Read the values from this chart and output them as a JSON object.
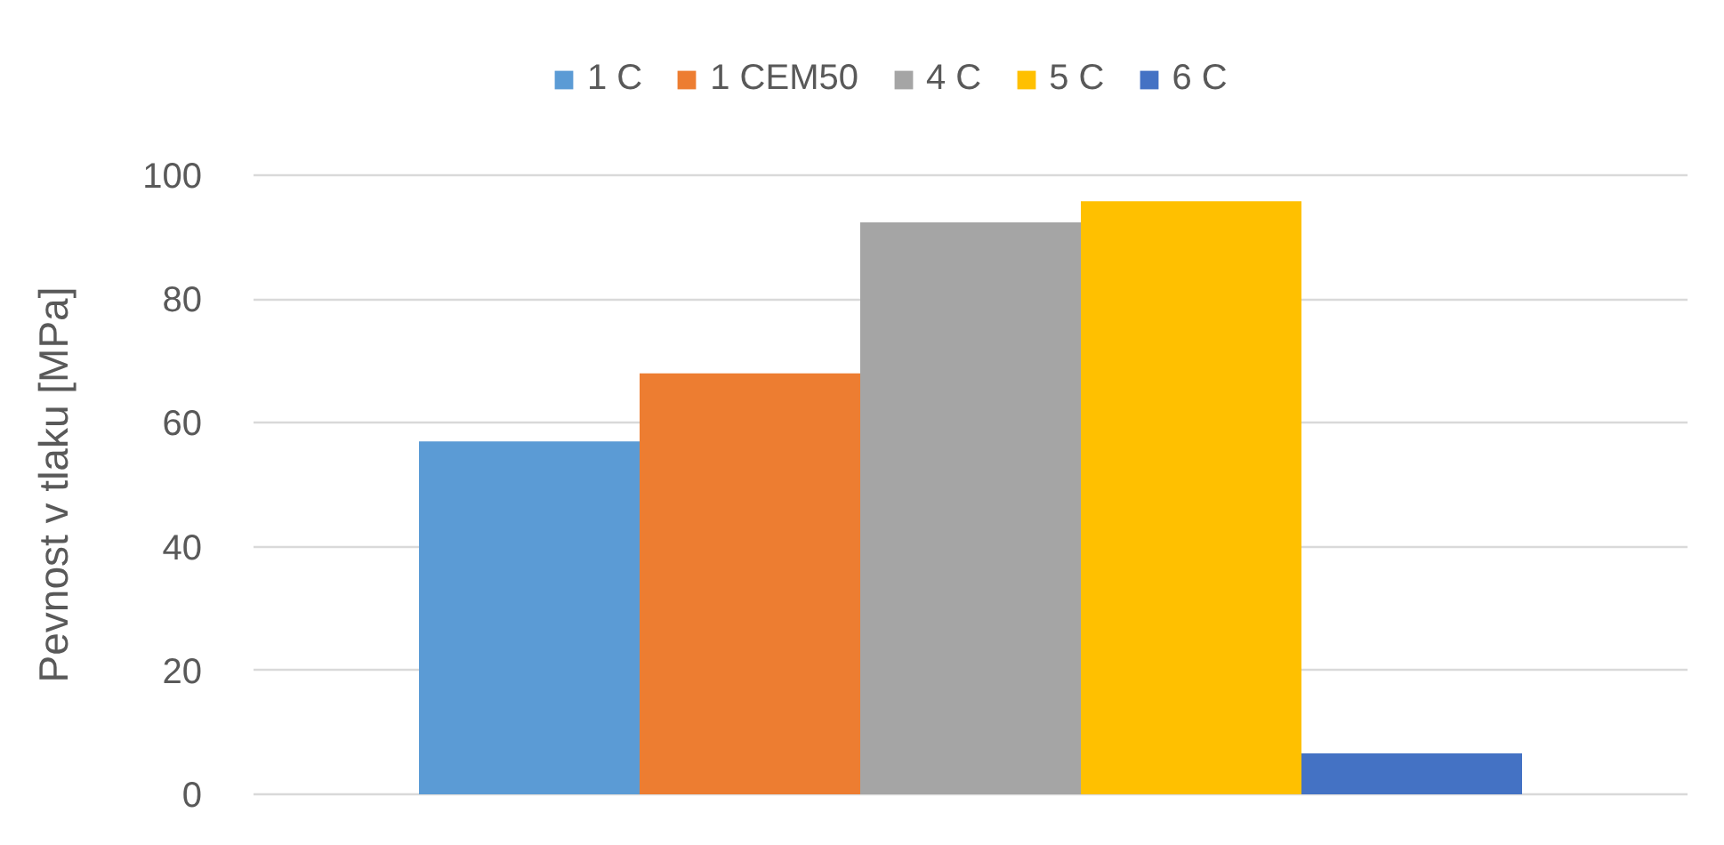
{
  "chart_data": {
    "type": "bar",
    "ylabel": "Pevnost v tlaku [MPa]",
    "categories": [
      null
    ],
    "series": [
      {
        "name": "1 C",
        "color": "#5b9bd5",
        "values": [
          57
        ]
      },
      {
        "name": "1 CEM50",
        "color": "#ed7d31",
        "values": [
          68
        ]
      },
      {
        "name": "4 C",
        "color": "#a5a5a5",
        "values": [
          92.4
        ]
      },
      {
        "name": "5 C",
        "color": "#ffc000",
        "values": [
          95.8
        ]
      },
      {
        "name": "6 C",
        "color": "#4472c4",
        "values": [
          6.6
        ]
      }
    ],
    "ylim": [
      0,
      100
    ],
    "yticks": [
      0,
      20,
      40,
      60,
      80,
      100
    ],
    "grid": "y",
    "legend": "top",
    "tick_labels": "y"
  }
}
